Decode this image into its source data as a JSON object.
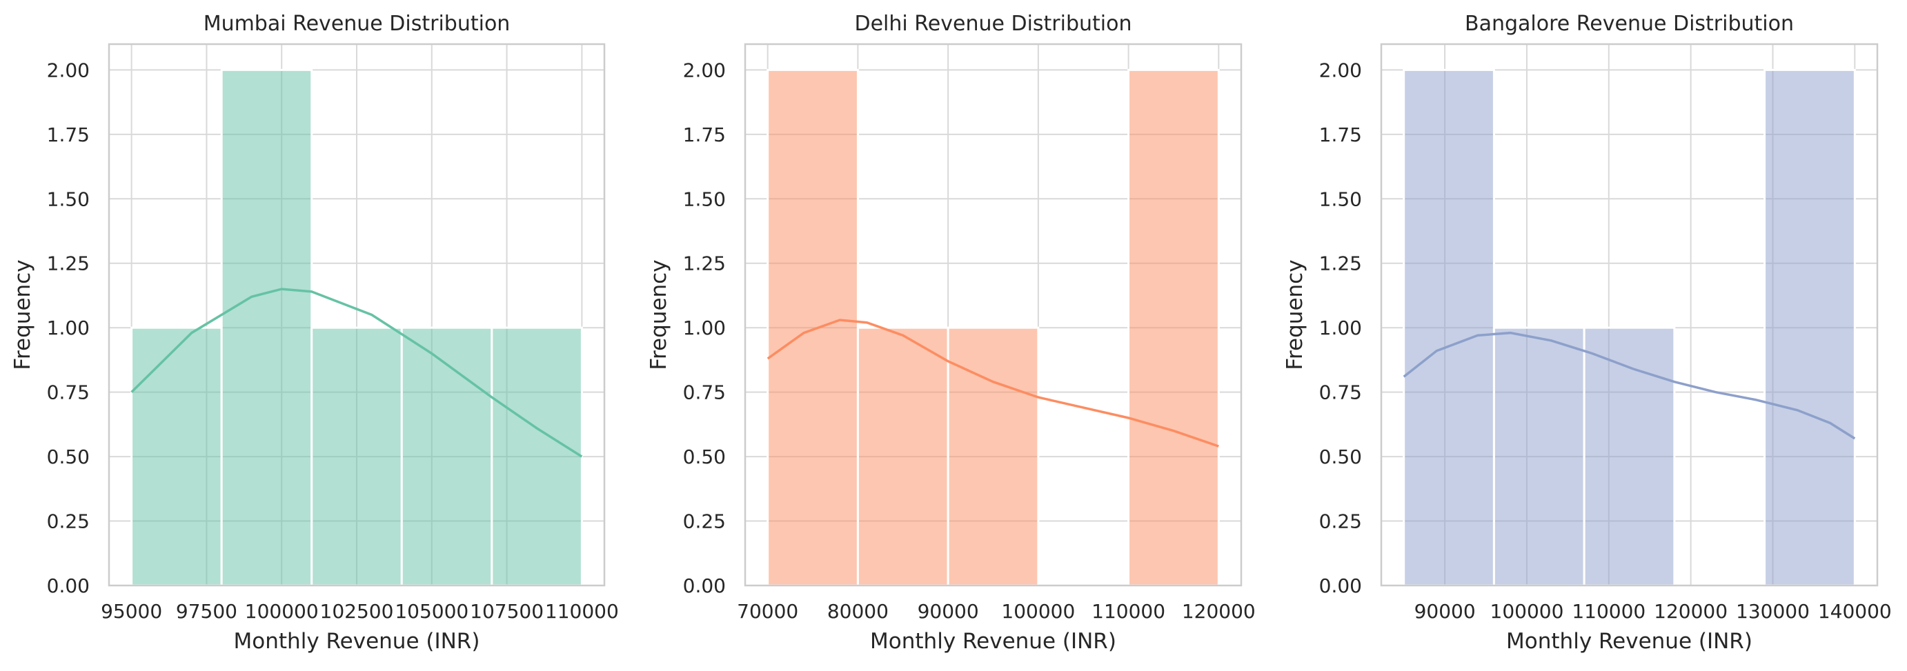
{
  "chart_data": [
    {
      "type": "bar",
      "title": "Mumbai Revenue Distribution",
      "xlabel": "Monthly Revenue (INR)",
      "ylabel": "Frequency",
      "color": "#66c2a5",
      "xlim": [
        94250,
        110750
      ],
      "ylim": [
        0,
        2.1
      ],
      "xticks": [
        {
          "value": 95000,
          "label": "95000"
        },
        {
          "value": 97500,
          "label": "97500"
        },
        {
          "value": 100000,
          "label": "100000"
        },
        {
          "value": 102500,
          "label": "102500"
        },
        {
          "value": 105000,
          "label": "105000"
        },
        {
          "value": 107500,
          "label": "107500"
        },
        {
          "value": 110000,
          "label": "110000"
        }
      ],
      "yticks": [
        "0.00",
        "0.25",
        "0.50",
        "0.75",
        "1.00",
        "1.25",
        "1.50",
        "1.75",
        "2.00"
      ],
      "bins": [
        {
          "start": 95000,
          "end": 98000,
          "count": 1
        },
        {
          "start": 98000,
          "end": 101000,
          "count": 2
        },
        {
          "start": 101000,
          "end": 104000,
          "count": 1
        },
        {
          "start": 104000,
          "end": 107000,
          "count": 1
        },
        {
          "start": 107000,
          "end": 110000,
          "count": 1
        }
      ],
      "kde": [
        [
          95000,
          0.75
        ],
        [
          97000,
          0.98
        ],
        [
          99000,
          1.12
        ],
        [
          100000,
          1.15
        ],
        [
          101000,
          1.14
        ],
        [
          103000,
          1.05
        ],
        [
          105000,
          0.9
        ],
        [
          107000,
          0.73
        ],
        [
          108500,
          0.61
        ],
        [
          110000,
          0.5
        ]
      ]
    },
    {
      "type": "bar",
      "title": "Delhi Revenue Distribution",
      "xlabel": "Monthly Revenue (INR)",
      "ylabel": "Frequency",
      "color": "#fc8d62",
      "xlim": [
        67500,
        122500
      ],
      "ylim": [
        0,
        2.1
      ],
      "xticks": [
        {
          "value": 70000,
          "label": "70000"
        },
        {
          "value": 80000,
          "label": "80000"
        },
        {
          "value": 90000,
          "label": "90000"
        },
        {
          "value": 100000,
          "label": "100000"
        },
        {
          "value": 110000,
          "label": "110000"
        },
        {
          "value": 120000,
          "label": "120000"
        }
      ],
      "yticks": [
        "0.00",
        "0.25",
        "0.50",
        "0.75",
        "1.00",
        "1.25",
        "1.50",
        "1.75",
        "2.00"
      ],
      "bins": [
        {
          "start": 70000,
          "end": 80000,
          "count": 2
        },
        {
          "start": 80000,
          "end": 90000,
          "count": 1
        },
        {
          "start": 90000,
          "end": 100000,
          "count": 1
        },
        {
          "start": 100000,
          "end": 110000,
          "count": 0
        },
        {
          "start": 110000,
          "end": 120000,
          "count": 2
        }
      ],
      "kde": [
        [
          70000,
          0.88
        ],
        [
          74000,
          0.98
        ],
        [
          78000,
          1.03
        ],
        [
          81000,
          1.02
        ],
        [
          85000,
          0.97
        ],
        [
          90000,
          0.87
        ],
        [
          95000,
          0.79
        ],
        [
          100000,
          0.73
        ],
        [
          105000,
          0.69
        ],
        [
          110000,
          0.65
        ],
        [
          115000,
          0.6
        ],
        [
          120000,
          0.54
        ]
      ]
    },
    {
      "type": "bar",
      "title": "Bangalore Revenue Distribution",
      "xlabel": "Monthly Revenue (INR)",
      "ylabel": "Frequency",
      "color": "#8da0cb",
      "xlim": [
        82250,
        142750
      ],
      "ylim": [
        0,
        2.1
      ],
      "xticks": [
        {
          "value": 90000,
          "label": "90000"
        },
        {
          "value": 100000,
          "label": "100000"
        },
        {
          "value": 110000,
          "label": "110000"
        },
        {
          "value": 120000,
          "label": "120000"
        },
        {
          "value": 130000,
          "label": "130000"
        },
        {
          "value": 140000,
          "label": "140000"
        }
      ],
      "yticks": [
        "0.00",
        "0.25",
        "0.50",
        "0.75",
        "1.00",
        "1.25",
        "1.50",
        "1.75",
        "2.00"
      ],
      "bins": [
        {
          "start": 85000,
          "end": 96000,
          "count": 2
        },
        {
          "start": 96000,
          "end": 107000,
          "count": 1
        },
        {
          "start": 107000,
          "end": 118000,
          "count": 1
        },
        {
          "start": 118000,
          "end": 129000,
          "count": 0
        },
        {
          "start": 129000,
          "end": 140000,
          "count": 2
        }
      ],
      "kde": [
        [
          85000,
          0.81
        ],
        [
          89000,
          0.91
        ],
        [
          94000,
          0.97
        ],
        [
          98000,
          0.98
        ],
        [
          103000,
          0.95
        ],
        [
          108000,
          0.9
        ],
        [
          113000,
          0.84
        ],
        [
          118000,
          0.79
        ],
        [
          123000,
          0.75
        ],
        [
          128000,
          0.72
        ],
        [
          133000,
          0.68
        ],
        [
          137000,
          0.63
        ],
        [
          140000,
          0.57
        ]
      ]
    }
  ]
}
